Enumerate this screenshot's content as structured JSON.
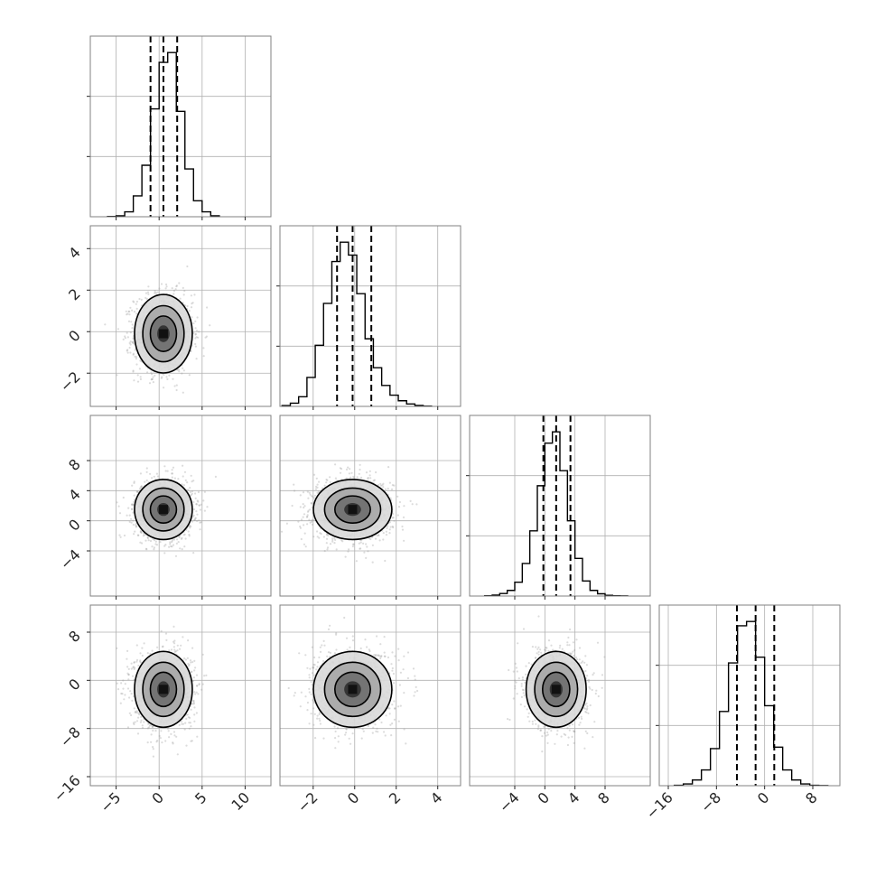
{
  "chart_data": {
    "type": "corner",
    "grid": true,
    "colors": {
      "background": "#ffffff",
      "histogram": "#000000",
      "quantile_lines": "#000000",
      "contours": "#000000",
      "scatter_points": "#9a9a9a",
      "grid": "#b0b0b0",
      "density_fill": [
        "#d9d9d9",
        "#a6a6a6",
        "#6e6e6e",
        "#2f2f2f"
      ]
    },
    "parameters": [
      {
        "range": [
          -8,
          13
        ],
        "ticks": [
          -5,
          0,
          5,
          10
        ],
        "tick_labels": [
          "−5",
          "0",
          "5",
          "10"
        ],
        "mean": 0.5,
        "sd": 1.6,
        "quantiles": [
          -1.0,
          0.5,
          2.1
        ],
        "hist_edges": [
          -6,
          -5,
          -4,
          -3,
          -2,
          -1,
          0,
          1,
          2,
          3,
          4,
          5,
          6,
          7
        ],
        "hist_counts": [
          2,
          8,
          40,
          170,
          420,
          880,
          1260,
          1340,
          860,
          390,
          130,
          40,
          8
        ]
      },
      {
        "range": [
          -3.6,
          5.1
        ],
        "ticks": [
          -2,
          0,
          2,
          4
        ],
        "tick_labels": [
          "−2",
          "0",
          "2",
          "4"
        ],
        "mean": -0.1,
        "sd": 0.9,
        "quantiles": [
          -0.85,
          -0.1,
          0.8
        ],
        "hist_edges": [
          -3.5,
          -3.1,
          -2.7,
          -2.3,
          -1.9,
          -1.5,
          -1.1,
          -0.7,
          -0.3,
          0.1,
          0.5,
          0.9,
          1.3,
          1.7,
          2.1,
          2.5,
          2.9,
          3.3,
          3.7
        ],
        "hist_counts": [
          5,
          20,
          60,
          180,
          380,
          640,
          900,
          1020,
          940,
          700,
          420,
          240,
          130,
          70,
          35,
          15,
          6,
          2
        ]
      },
      {
        "range": [
          -10,
          14
        ],
        "ticks": [
          -4,
          0,
          4,
          8
        ],
        "tick_labels": [
          "−4",
          "0",
          "4",
          "8"
        ],
        "mean": 1.5,
        "sd": 1.9,
        "quantiles": [
          -0.2,
          1.5,
          3.4
        ],
        "hist_edges": [
          -8,
          -7,
          -6,
          -5,
          -4,
          -3,
          -2,
          -1,
          0,
          1,
          2,
          3,
          4,
          5,
          6,
          7,
          8,
          9,
          10,
          11
        ],
        "hist_counts": [
          2,
          8,
          20,
          45,
          110,
          260,
          520,
          880,
          1220,
          1310,
          1000,
          600,
          300,
          120,
          45,
          18,
          6,
          2,
          1
        ]
      },
      {
        "range": [
          -17.5,
          12.5
        ],
        "ticks": [
          -16,
          -8,
          0,
          8
        ],
        "tick_labels": [
          "−16",
          "−8",
          "0",
          "8"
        ],
        "mean": -1.5,
        "sd": 3.0,
        "quantiles": [
          -4.6,
          -1.5,
          1.6
        ],
        "hist_edges": [
          -15,
          -13.5,
          -12,
          -10.5,
          -9,
          -7.5,
          -6,
          -4.5,
          -3,
          -1.5,
          0,
          1.5,
          3,
          4.5,
          6,
          7.5,
          9,
          10.5
        ],
        "hist_counts": [
          3,
          12,
          40,
          110,
          260,
          520,
          860,
          1120,
          1150,
          900,
          560,
          270,
          110,
          40,
          12,
          3,
          1
        ]
      }
    ],
    "pair_panels": [
      {
        "x": 0,
        "y": 1,
        "y_ticks": [
          -2,
          0,
          2,
          4
        ],
        "y_tick_labels": [
          "−2",
          "0",
          "2",
          "4"
        ]
      },
      {
        "x": 0,
        "y": 2,
        "y_ticks": [
          -4,
          0,
          4,
          8
        ],
        "y_tick_labels": [
          "−4",
          "0",
          "4",
          "8"
        ]
      },
      {
        "x": 1,
        "y": 2
      },
      {
        "x": 0,
        "y": 3,
        "y_ticks": [
          -16,
          -8,
          0,
          8
        ],
        "y_tick_labels": [
          "−16",
          "−8",
          "0",
          "8"
        ]
      },
      {
        "x": 1,
        "y": 3
      },
      {
        "x": 2,
        "y": 3
      }
    ]
  }
}
